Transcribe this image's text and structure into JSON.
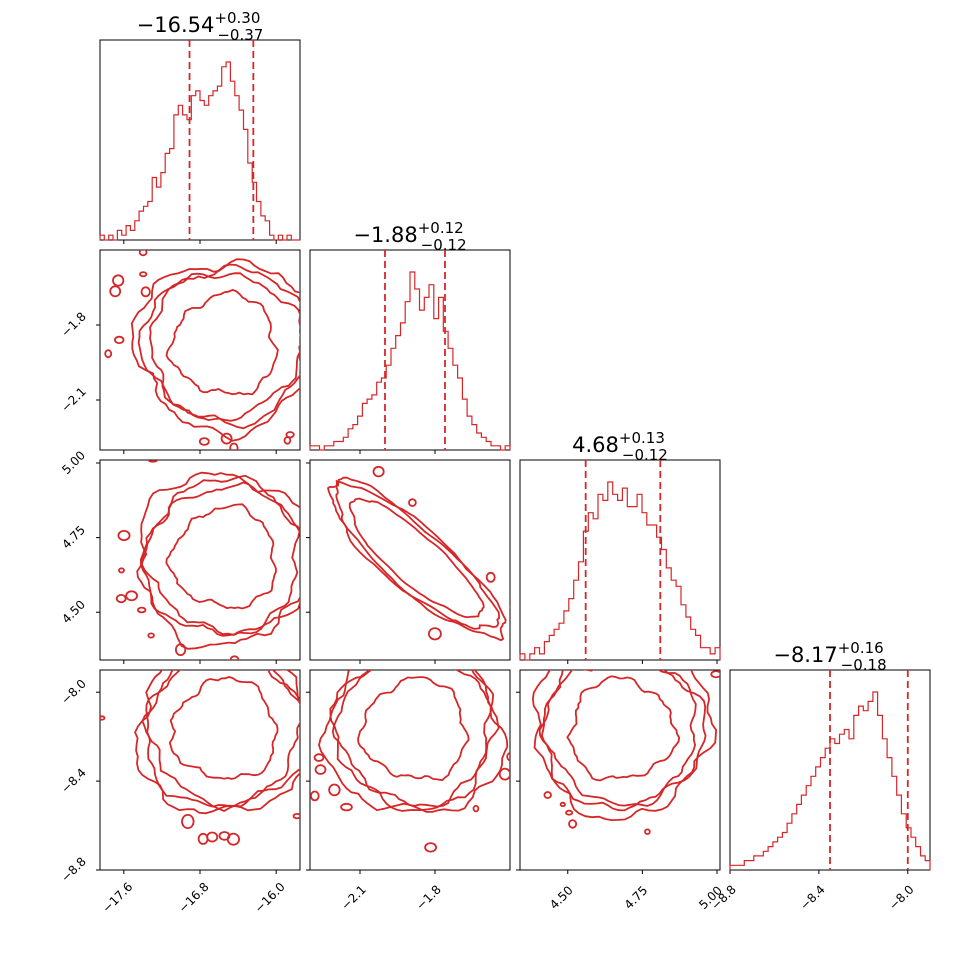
{
  "chart_data": {
    "type": "corner",
    "color": "#d62728",
    "parameters": [
      {
        "index": 0,
        "title": {
          "median": "−16.54",
          "plus": "+0.30",
          "minus": "−0.37"
        },
        "range": [
          -17.85,
          -15.75
        ],
        "ticks": [
          -17.6,
          -16.8,
          -16.0
        ],
        "tick_labels": [
          "−17.6",
          "−16.8",
          "−16.0"
        ],
        "quantiles": [
          -16.91,
          -16.24
        ],
        "hist": [
          1,
          0,
          1,
          0,
          2,
          1,
          3,
          2,
          4,
          6,
          7,
          8,
          13,
          11,
          14,
          18,
          19,
          26,
          28,
          26,
          25,
          30,
          31,
          29,
          28,
          30,
          31,
          32,
          36,
          37,
          33,
          30,
          27,
          23,
          16,
          12,
          8,
          5,
          4,
          1,
          0,
          1,
          0,
          1,
          0,
          0
        ]
      },
      {
        "index": 1,
        "title": {
          "median": "−1.88",
          "plus": "+0.12",
          "minus": "−0.12"
        },
        "range": [
          -2.3,
          -1.5
        ],
        "ticks": [
          -2.1,
          -1.8
        ],
        "tick_labels": [
          "−2.1",
          "−1.8"
        ],
        "quantiles": [
          -2.0,
          -1.76
        ],
        "hist": [
          1,
          1,
          0,
          1,
          1,
          2,
          2,
          3,
          5,
          6,
          8,
          11,
          12,
          13,
          16,
          17,
          20,
          24,
          27,
          30,
          35,
          42,
          38,
          33,
          36,
          39,
          31,
          36,
          28,
          24,
          20,
          17,
          12,
          8,
          6,
          4,
          3,
          2,
          1,
          1,
          0,
          1
        ]
      },
      {
        "index": 2,
        "title": {
          "median": "4.68",
          "plus": "+0.13",
          "minus": "−0.12"
        },
        "range": [
          4.34,
          5.01
        ],
        "ticks": [
          4.5,
          4.75,
          5.0
        ],
        "tick_labels": [
          "4.50",
          "4.75",
          "5.00"
        ],
        "quantiles": [
          4.56,
          4.81
        ],
        "hist": [
          1,
          0,
          1,
          2,
          1,
          3,
          4,
          5,
          6,
          8,
          10,
          13,
          16,
          21,
          24,
          23,
          27,
          26,
          29,
          27,
          26,
          28,
          25,
          25,
          27,
          24,
          22,
          22,
          20,
          18,
          15,
          13,
          12,
          9,
          7,
          5,
          4,
          2,
          2,
          1,
          2
        ]
      },
      {
        "index": 3,
        "title": {
          "median": "−8.17",
          "plus": "+0.16",
          "minus": "−0.18"
        },
        "range": [
          -8.8,
          -7.9
        ],
        "ticks": [
          -8.8,
          -8.4,
          -8.0
        ],
        "tick_labels": [
          "−8.8",
          "−8.4",
          "−8.0"
        ],
        "quantiles": [
          -8.35,
          -8.0
        ],
        "hist": [
          1,
          1,
          1,
          2,
          2,
          3,
          3,
          4,
          5,
          6,
          7,
          8,
          10,
          12,
          14,
          16,
          18,
          20,
          22,
          24,
          26,
          28,
          27,
          29,
          30,
          28,
          33,
          35,
          34,
          36,
          38,
          33,
          28,
          24,
          20,
          16,
          12,
          9,
          7,
          5,
          3,
          2
        ]
      }
    ],
    "y_tick_labels": {
      "row1": {
        "ticks": [
          -2.1,
          -1.8
        ],
        "labels": [
          "−2.1",
          "−1.8"
        ]
      },
      "row2": {
        "ticks": [
          4.5,
          4.75,
          5.0
        ],
        "labels": [
          "4.50",
          "4.75",
          "5.00"
        ]
      },
      "row3": {
        "ticks": [
          -8.8,
          -8.4,
          -8.0
        ],
        "labels": [
          "−8.8",
          "−8.4",
          "−8.0"
        ]
      }
    },
    "grid": false,
    "legend": "none"
  }
}
